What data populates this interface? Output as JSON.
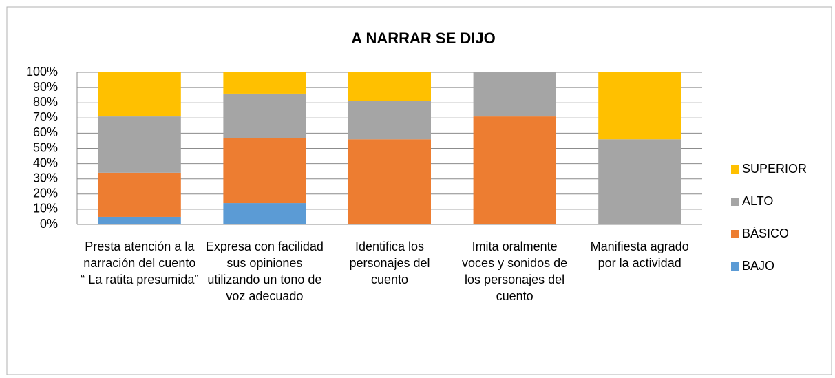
{
  "chart_data": {
    "type": "stacked_bar",
    "title": "A NARRAR SE DIJO",
    "categories": [
      "Presta atención a la narración del cuento “ La ratita presumida”",
      "Expresa con facilidad sus opiniones utilizando un tono  de voz adecuado",
      "Identifica los personajes del cuento",
      "Imita oralmente voces y sonidos de los personajes del cuento",
      "Manifiesta agrado por la actividad"
    ],
    "series": [
      {
        "name": "BAJO",
        "color": "#5b9bd5",
        "values": [
          5,
          14,
          0,
          0,
          0
        ]
      },
      {
        "name": "BÁSICO",
        "color": "#ed7d31",
        "values": [
          29,
          43,
          56,
          71,
          0
        ]
      },
      {
        "name": "ALTO",
        "color": "#a5a5a5",
        "values": [
          37,
          29,
          25,
          29,
          56
        ]
      },
      {
        "name": "SUPERIOR",
        "color": "#ffc000",
        "values": [
          29,
          14,
          19,
          0,
          44
        ]
      }
    ],
    "ylim": [
      0,
      100
    ],
    "yticks": [
      {
        "value": 0,
        "label": "0%"
      },
      {
        "value": 10,
        "label": "10%"
      },
      {
        "value": 20,
        "label": "20%"
      },
      {
        "value": 30,
        "label": "30%"
      },
      {
        "value": 40,
        "label": "40%"
      },
      {
        "value": 50,
        "label": "50%"
      },
      {
        "value": 60,
        "label": "60%"
      },
      {
        "value": 70,
        "label": "70%"
      },
      {
        "value": 80,
        "label": "80%"
      },
      {
        "value": 90,
        "label": "90%"
      },
      {
        "value": 100,
        "label": "100%"
      }
    ],
    "grid": true,
    "legend": "right"
  }
}
